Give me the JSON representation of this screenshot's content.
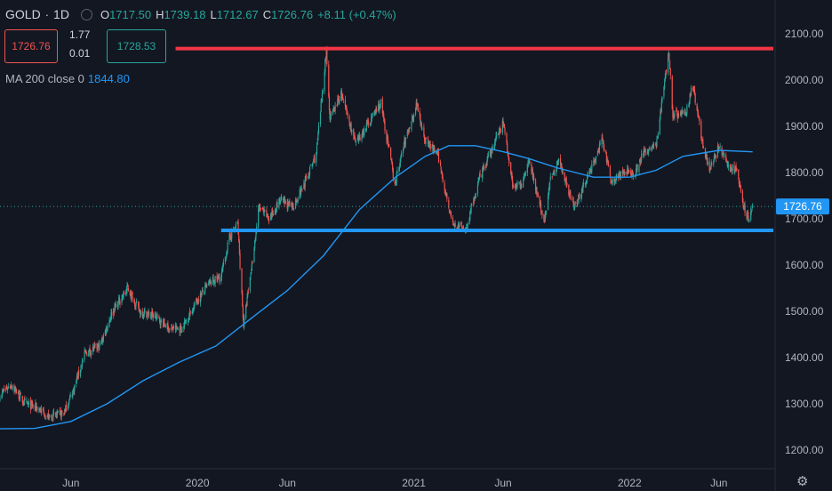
{
  "header": {
    "symbol": "GOLD",
    "sep": "·",
    "interval": "1D",
    "o_key": "O",
    "o_val": "1717.50",
    "h_key": "H",
    "h_val": "1739.18",
    "l_key": "L",
    "l_val": "1712.67",
    "c_key": "C",
    "c_val": "1726.76",
    "change": "+8.11 (+0.47%)"
  },
  "trade": {
    "sell_price": "1726.76",
    "spread_top": "1.77",
    "spread_bottom": "0.01",
    "buy_price": "1728.53"
  },
  "indicator": {
    "label": "MA 200 close 0",
    "value": "1844.80"
  },
  "icons": {
    "settings": "gear-icon",
    "visibility": "eye-circle-icon"
  },
  "colors": {
    "background": "#131722",
    "up": "#26a69a",
    "down": "#ef5350",
    "ma": "#2196f3",
    "resistance": "#f23645",
    "support": "#2196f3"
  },
  "chart_data": {
    "type": "candlestick",
    "instrument": "GOLD",
    "interval": "1D",
    "ylim": [
      1160,
      2130
    ],
    "y_ticks": [
      "2100.00",
      "2000.00",
      "1900.00",
      "1800.00",
      "1700.00",
      "1600.00",
      "1500.00",
      "1400.00",
      "1300.00",
      "1200.00"
    ],
    "x_ticks": [
      "Jun",
      "2020",
      "Jun",
      "2021",
      "Jun",
      "2022",
      "Jun"
    ],
    "x_tick_dates": [
      "2019-06-01",
      "2020-01-01",
      "2020-06-01",
      "2021-01-01",
      "2021-06-01",
      "2022-01-01",
      "2022-06-01"
    ],
    "x_range": [
      "2019-02-01",
      "2022-08-20"
    ],
    "last_price": "1726.76",
    "last_price_value": 1726.76,
    "price_path": [
      [
        "2019-02-01",
        1320
      ],
      [
        "2019-02-20",
        1342
      ],
      [
        "2019-03-15",
        1300
      ],
      [
        "2019-04-05",
        1292
      ],
      [
        "2019-04-25",
        1270
      ],
      [
        "2019-05-20",
        1280
      ],
      [
        "2019-06-05",
        1330
      ],
      [
        "2019-06-25",
        1410
      ],
      [
        "2019-07-20",
        1425
      ],
      [
        "2019-08-10",
        1500
      ],
      [
        "2019-09-05",
        1550
      ],
      [
        "2019-09-25",
        1500
      ],
      [
        "2019-10-20",
        1490
      ],
      [
        "2019-11-15",
        1462
      ],
      [
        "2019-12-05",
        1462
      ],
      [
        "2020-01-01",
        1525
      ],
      [
        "2020-01-20",
        1560
      ],
      [
        "2020-02-10",
        1575
      ],
      [
        "2020-02-24",
        1660
      ],
      [
        "2020-03-09",
        1690
      ],
      [
        "2020-03-19",
        1470
      ],
      [
        "2020-04-01",
        1590
      ],
      [
        "2020-04-14",
        1725
      ],
      [
        "2020-05-01",
        1700
      ],
      [
        "2020-05-20",
        1740
      ],
      [
        "2020-06-10",
        1725
      ],
      [
        "2020-07-01",
        1780
      ],
      [
        "2020-07-20",
        1840
      ],
      [
        "2020-08-06",
        2065
      ],
      [
        "2020-08-12",
        1915
      ],
      [
        "2020-08-31",
        1970
      ],
      [
        "2020-09-25",
        1860
      ],
      [
        "2020-10-15",
        1905
      ],
      [
        "2020-11-06",
        1950
      ],
      [
        "2020-11-30",
        1775
      ],
      [
        "2020-12-15",
        1860
      ],
      [
        "2021-01-06",
        1950
      ],
      [
        "2021-01-20",
        1870
      ],
      [
        "2021-02-10",
        1840
      ],
      [
        "2021-03-08",
        1685
      ],
      [
        "2021-03-31",
        1680
      ],
      [
        "2021-04-20",
        1780
      ],
      [
        "2021-05-10",
        1840
      ],
      [
        "2021-06-01",
        1910
      ],
      [
        "2021-06-17",
        1775
      ],
      [
        "2021-07-01",
        1770
      ],
      [
        "2021-07-15",
        1830
      ],
      [
        "2021-08-09",
        1690
      ],
      [
        "2021-08-20",
        1785
      ],
      [
        "2021-09-03",
        1830
      ],
      [
        "2021-09-29",
        1725
      ],
      [
        "2021-10-20",
        1785
      ],
      [
        "2021-11-16",
        1870
      ],
      [
        "2021-12-01",
        1780
      ],
      [
        "2021-12-20",
        1800
      ],
      [
        "2022-01-10",
        1800
      ],
      [
        "2022-01-25",
        1845
      ],
      [
        "2022-02-15",
        1860
      ],
      [
        "2022-03-08",
        2065
      ],
      [
        "2022-03-15",
        1925
      ],
      [
        "2022-04-05",
        1925
      ],
      [
        "2022-04-18",
        1990
      ],
      [
        "2022-05-04",
        1865
      ],
      [
        "2022-05-16",
        1805
      ],
      [
        "2022-06-01",
        1855
      ],
      [
        "2022-06-15",
        1815
      ],
      [
        "2022-07-01",
        1805
      ],
      [
        "2022-07-12",
        1730
      ],
      [
        "2022-07-21",
        1700
      ],
      [
        "2022-07-28",
        1726.76
      ]
    ],
    "ma200_path": [
      [
        "2019-02-01",
        1246
      ],
      [
        "2019-04-01",
        1247
      ],
      [
        "2019-06-01",
        1262
      ],
      [
        "2019-08-01",
        1300
      ],
      [
        "2019-10-01",
        1350
      ],
      [
        "2019-12-01",
        1390
      ],
      [
        "2020-02-01",
        1425
      ],
      [
        "2020-04-01",
        1485
      ],
      [
        "2020-06-01",
        1545
      ],
      [
        "2020-08-01",
        1620
      ],
      [
        "2020-10-01",
        1720
      ],
      [
        "2020-12-01",
        1790
      ],
      [
        "2021-01-20",
        1835
      ],
      [
        "2021-03-01",
        1858
      ],
      [
        "2021-04-15",
        1858
      ],
      [
        "2021-06-01",
        1845
      ],
      [
        "2021-07-15",
        1830
      ],
      [
        "2021-09-01",
        1810
      ],
      [
        "2021-11-01",
        1790
      ],
      [
        "2022-01-01",
        1790
      ],
      [
        "2022-02-15",
        1805
      ],
      [
        "2022-04-01",
        1835
      ],
      [
        "2022-06-01",
        1848
      ],
      [
        "2022-07-28",
        1844.8
      ]
    ],
    "horizontal_lines": [
      {
        "price": 2068,
        "start": "2019-11-25",
        "color": "#f23645"
      },
      {
        "price": 1675,
        "start": "2020-02-10",
        "color": "#2196f3"
      }
    ]
  }
}
